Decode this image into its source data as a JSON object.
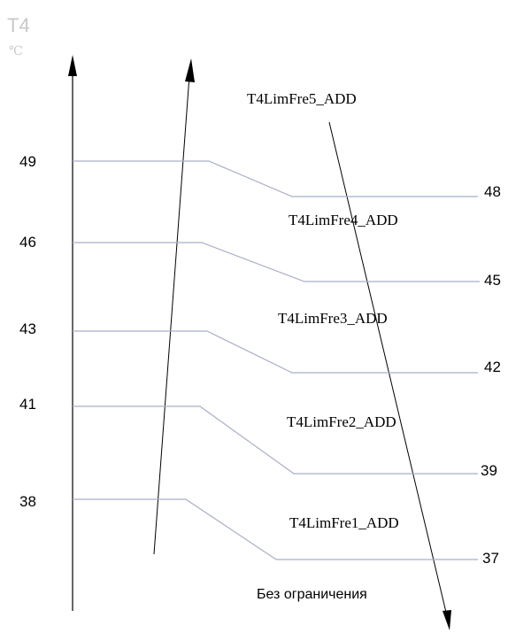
{
  "axis": {
    "title": "T4",
    "unit": "℃",
    "title_color": "#c8c8c8"
  },
  "left_thresholds": [
    "49",
    "46",
    "43",
    "41",
    "38"
  ],
  "right_thresholds": [
    "48",
    "45",
    "42",
    "39",
    "37"
  ],
  "zones": [
    "T4LimFre5_ADD",
    "T4LimFre4_ADD",
    "T4LimFre3_ADD",
    "T4LimFre2_ADD",
    "T4LimFre1_ADD"
  ],
  "bottom_zone": "Без ограничения",
  "colors": {
    "axis": "#000000",
    "threshold_line": "#a9afc6",
    "text": "#000000"
  }
}
